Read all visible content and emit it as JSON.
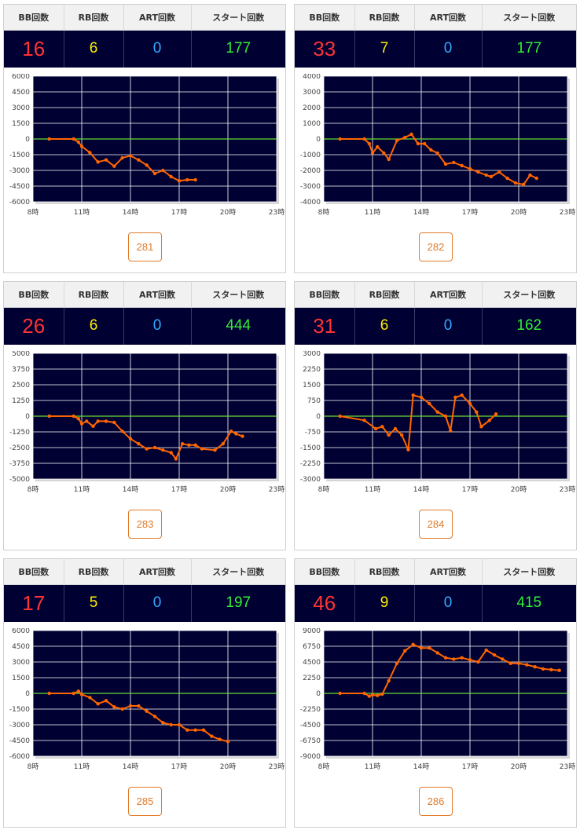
{
  "headers": {
    "bb": "BB回数",
    "rb": "RB回数",
    "art": "ART回数",
    "start": "スタート回数"
  },
  "colors": {
    "panel_bg": "#000033",
    "line": "#ff6600",
    "zero_line": "#66dd33",
    "bb": "#ff3333",
    "rb": "#ffee00",
    "art": "#33aaff",
    "start": "#33ee33",
    "button": "#e07b2a"
  },
  "machines": [
    {
      "number": "281",
      "bb": "16",
      "rb": "6",
      "art": "0",
      "start": "177",
      "chart_data": {
        "type": "line",
        "x_ticks": [
          "8時",
          "11時",
          "14時",
          "17時",
          "20時",
          "23時"
        ],
        "xlim": [
          8,
          23
        ],
        "ylim": [
          -6000,
          6000
        ],
        "y_ticks": [
          6000,
          4500,
          3000,
          1500,
          0,
          -1500,
          -3000,
          -4500,
          -6000
        ],
        "points": [
          [
            9,
            0
          ],
          [
            10.5,
            0
          ],
          [
            10.8,
            -300
          ],
          [
            11,
            -700
          ],
          [
            11.5,
            -1300
          ],
          [
            12,
            -2200
          ],
          [
            12.5,
            -2000
          ],
          [
            13,
            -2600
          ],
          [
            13.5,
            -1800
          ],
          [
            14,
            -1600
          ],
          [
            14.5,
            -2000
          ],
          [
            15,
            -2500
          ],
          [
            15.5,
            -3300
          ],
          [
            16,
            -3000
          ],
          [
            16.5,
            -3600
          ],
          [
            17,
            -4000
          ],
          [
            17.5,
            -3900
          ],
          [
            18,
            -3900
          ]
        ]
      }
    },
    {
      "number": "282",
      "bb": "33",
      "rb": "7",
      "art": "0",
      "start": "177",
      "chart_data": {
        "type": "line",
        "x_ticks": [
          "8時",
          "11時",
          "14時",
          "17時",
          "20時",
          "23時"
        ],
        "xlim": [
          8,
          23
        ],
        "ylim": [
          -4000,
          4000
        ],
        "y_ticks": [
          4000,
          3000,
          2000,
          1000,
          0,
          -1000,
          -2000,
          -3000,
          -4000
        ],
        "points": [
          [
            9,
            0
          ],
          [
            10.5,
            0
          ],
          [
            10.8,
            -300
          ],
          [
            11,
            -900
          ],
          [
            11.3,
            -500
          ],
          [
            11.7,
            -900
          ],
          [
            12,
            -1300
          ],
          [
            12.5,
            -100
          ],
          [
            13,
            100
          ],
          [
            13.4,
            300
          ],
          [
            13.8,
            -300
          ],
          [
            14.2,
            -300
          ],
          [
            14.6,
            -700
          ],
          [
            15,
            -900
          ],
          [
            15.5,
            -1600
          ],
          [
            16,
            -1500
          ],
          [
            16.5,
            -1700
          ],
          [
            17,
            -1900
          ],
          [
            17.5,
            -2100
          ],
          [
            18,
            -2300
          ],
          [
            18.3,
            -2400
          ],
          [
            18.8,
            -2100
          ],
          [
            19.3,
            -2500
          ],
          [
            19.8,
            -2800
          ],
          [
            20.3,
            -2900
          ],
          [
            20.7,
            -2300
          ],
          [
            21.1,
            -2500
          ]
        ]
      }
    },
    {
      "number": "283",
      "bb": "26",
      "rb": "6",
      "art": "0",
      "start": "444",
      "chart_data": {
        "type": "line",
        "x_ticks": [
          "8時",
          "11時",
          "14時",
          "17時",
          "20時",
          "23時"
        ],
        "xlim": [
          8,
          23
        ],
        "ylim": [
          -5000,
          5000
        ],
        "y_ticks": [
          5000,
          3750,
          2500,
          1250,
          0,
          -1250,
          -2500,
          -3750,
          -5000
        ],
        "points": [
          [
            9,
            0
          ],
          [
            10.5,
            0
          ],
          [
            10.8,
            -200
          ],
          [
            11,
            -600
          ],
          [
            11.3,
            -400
          ],
          [
            11.7,
            -800
          ],
          [
            12,
            -400
          ],
          [
            12.5,
            -400
          ],
          [
            13,
            -500
          ],
          [
            13.5,
            -1200
          ],
          [
            14,
            -1800
          ],
          [
            14.5,
            -2200
          ],
          [
            15,
            -2600
          ],
          [
            15.5,
            -2500
          ],
          [
            16,
            -2700
          ],
          [
            16.5,
            -2900
          ],
          [
            16.8,
            -3400
          ],
          [
            17.2,
            -2200
          ],
          [
            17.6,
            -2300
          ],
          [
            18,
            -2300
          ],
          [
            18.4,
            -2600
          ],
          [
            19.2,
            -2700
          ],
          [
            19.7,
            -2200
          ],
          [
            20.2,
            -1200
          ],
          [
            20.5,
            -1400
          ],
          [
            20.9,
            -1600
          ]
        ]
      }
    },
    {
      "number": "284",
      "bb": "31",
      "rb": "6",
      "art": "0",
      "start": "162",
      "chart_data": {
        "type": "line",
        "x_ticks": [
          "8時",
          "11時",
          "14時",
          "17時",
          "20時",
          "23時"
        ],
        "xlim": [
          8,
          23
        ],
        "ylim": [
          -3000,
          3000
        ],
        "y_ticks": [
          3000,
          2250,
          1500,
          750,
          0,
          -750,
          -1500,
          -2250,
          -3000
        ],
        "points": [
          [
            9,
            0
          ],
          [
            10.5,
            -200
          ],
          [
            11.2,
            -600
          ],
          [
            11.6,
            -500
          ],
          [
            12,
            -900
          ],
          [
            12.4,
            -600
          ],
          [
            12.8,
            -900
          ],
          [
            13.2,
            -1600
          ],
          [
            13.5,
            1000
          ],
          [
            14,
            900
          ],
          [
            14.5,
            600
          ],
          [
            15,
            200
          ],
          [
            15.5,
            0
          ],
          [
            15.8,
            -700
          ],
          [
            16.1,
            900
          ],
          [
            16.5,
            1000
          ],
          [
            17,
            600
          ],
          [
            17.4,
            200
          ],
          [
            17.7,
            -500
          ],
          [
            18.2,
            -200
          ],
          [
            18.6,
            100
          ]
        ]
      }
    },
    {
      "number": "285",
      "bb": "17",
      "rb": "5",
      "art": "0",
      "start": "197",
      "chart_data": {
        "type": "line",
        "x_ticks": [
          "8時",
          "11時",
          "14時",
          "17時",
          "20時",
          "23時"
        ],
        "xlim": [
          8,
          23
        ],
        "ylim": [
          -6000,
          6000
        ],
        "y_ticks": [
          6000,
          4500,
          3000,
          1500,
          0,
          -1500,
          -3000,
          -4500,
          -6000
        ],
        "points": [
          [
            9,
            0
          ],
          [
            10.5,
            0
          ],
          [
            10.8,
            200
          ],
          [
            11,
            -100
          ],
          [
            11.5,
            -400
          ],
          [
            12,
            -1000
          ],
          [
            12.5,
            -700
          ],
          [
            13,
            -1300
          ],
          [
            13.5,
            -1500
          ],
          [
            14,
            -1200
          ],
          [
            14.5,
            -1200
          ],
          [
            15,
            -1700
          ],
          [
            15.5,
            -2200
          ],
          [
            16,
            -2800
          ],
          [
            16.5,
            -3000
          ],
          [
            17,
            -3000
          ],
          [
            17.5,
            -3500
          ],
          [
            18,
            -3500
          ],
          [
            18.5,
            -3500
          ],
          [
            19,
            -4100
          ],
          [
            19.5,
            -4400
          ],
          [
            20,
            -4600
          ]
        ]
      }
    },
    {
      "number": "286",
      "bb": "46",
      "rb": "9",
      "art": "0",
      "start": "415",
      "chart_data": {
        "type": "line",
        "x_ticks": [
          "8時",
          "11時",
          "14時",
          "17時",
          "20時",
          "23時"
        ],
        "xlim": [
          8,
          23
        ],
        "ylim": [
          -9000,
          9000
        ],
        "y_ticks": [
          9000,
          6750,
          4500,
          2250,
          0,
          -2250,
          -4500,
          -6750,
          -9000
        ],
        "points": [
          [
            9,
            0
          ],
          [
            10.5,
            0
          ],
          [
            10.8,
            -400
          ],
          [
            11,
            -200
          ],
          [
            11.3,
            -300
          ],
          [
            11.6,
            -100
          ],
          [
            12,
            1800
          ],
          [
            12.5,
            4300
          ],
          [
            13,
            6100
          ],
          [
            13.5,
            7000
          ],
          [
            14,
            6500
          ],
          [
            14.5,
            6500
          ],
          [
            15,
            5800
          ],
          [
            15.5,
            5100
          ],
          [
            16,
            4900
          ],
          [
            16.5,
            5100
          ],
          [
            17,
            4800
          ],
          [
            17.5,
            4500
          ],
          [
            18,
            6200
          ],
          [
            18.5,
            5500
          ],
          [
            19,
            4900
          ],
          [
            19.5,
            4300
          ],
          [
            20,
            4300
          ],
          [
            20.5,
            4100
          ],
          [
            21,
            3800
          ],
          [
            21.5,
            3500
          ],
          [
            22,
            3400
          ],
          [
            22.5,
            3300
          ]
        ]
      }
    }
  ]
}
